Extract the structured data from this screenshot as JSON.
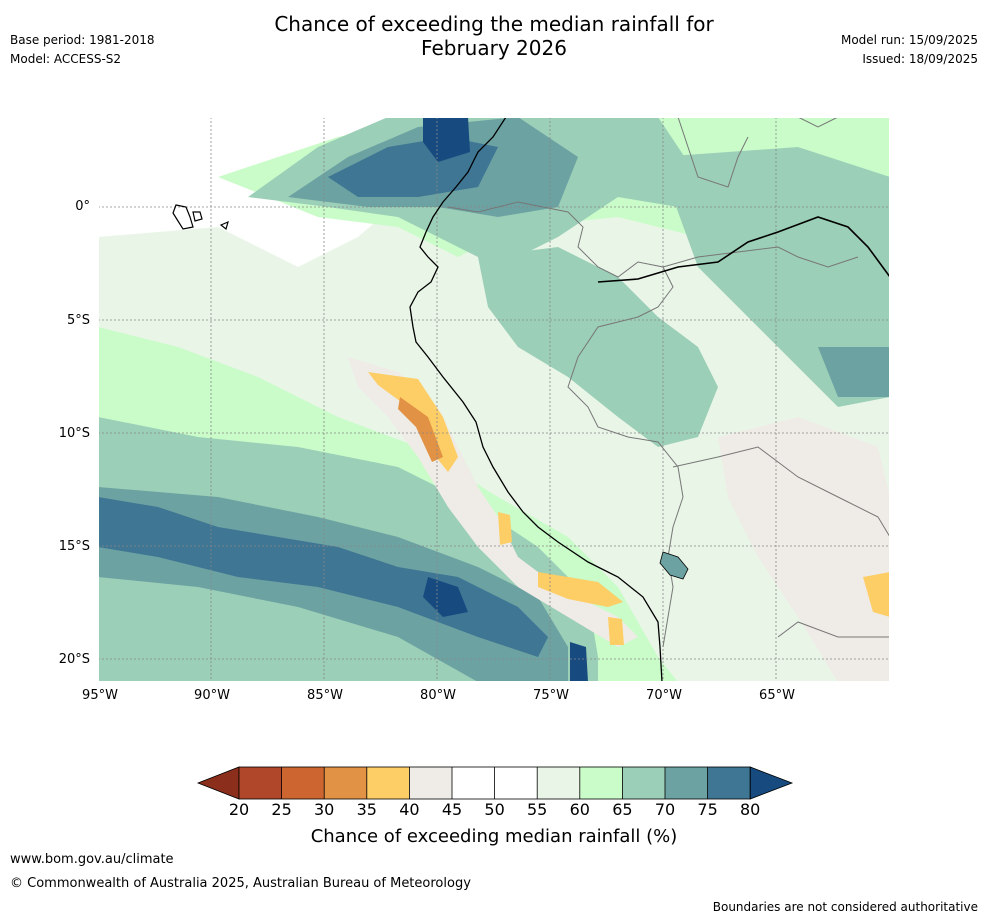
{
  "title_line1": "Chance of exceeding the median rainfall for",
  "title_line2": "February 2026",
  "base_period": "Base period: 1981-2018",
  "model": "Model: ACCESS-S2",
  "model_run": "Model run: 15/09/2025",
  "issued": "Issued: 18/09/2025",
  "lat_labels": [
    "0°",
    "5°S",
    "10°S",
    "15°S",
    "20°S"
  ],
  "lon_labels": [
    "95°W",
    "90°W",
    "85°W",
    "80°W",
    "75°W",
    "70°W",
    "65°W"
  ],
  "colorbar": {
    "ticks": [
      "20",
      "25",
      "30",
      "35",
      "40",
      "45",
      "50",
      "55",
      "60",
      "65",
      "70",
      "75",
      "80"
    ],
    "colors": [
      "#8b2e1c",
      "#b1472a",
      "#cd6530",
      "#e29245",
      "#fdcd66",
      "#efece7",
      "#ffffff",
      "#ffffff",
      "#e9f5e7",
      "#c9fcc9",
      "#9ccfb7",
      "#6ca2a2",
      "#3f7693",
      "#174b80"
    ],
    "label": "Chance of exceeding median rainfall (%)"
  },
  "footer_url": "www.bom.gov.au/climate",
  "footer_copyright": "© Commonwealth of Australia 2025, Australian Bureau of Meteorology",
  "footer_disclaimer": "Boundaries are not considered authoritative"
}
